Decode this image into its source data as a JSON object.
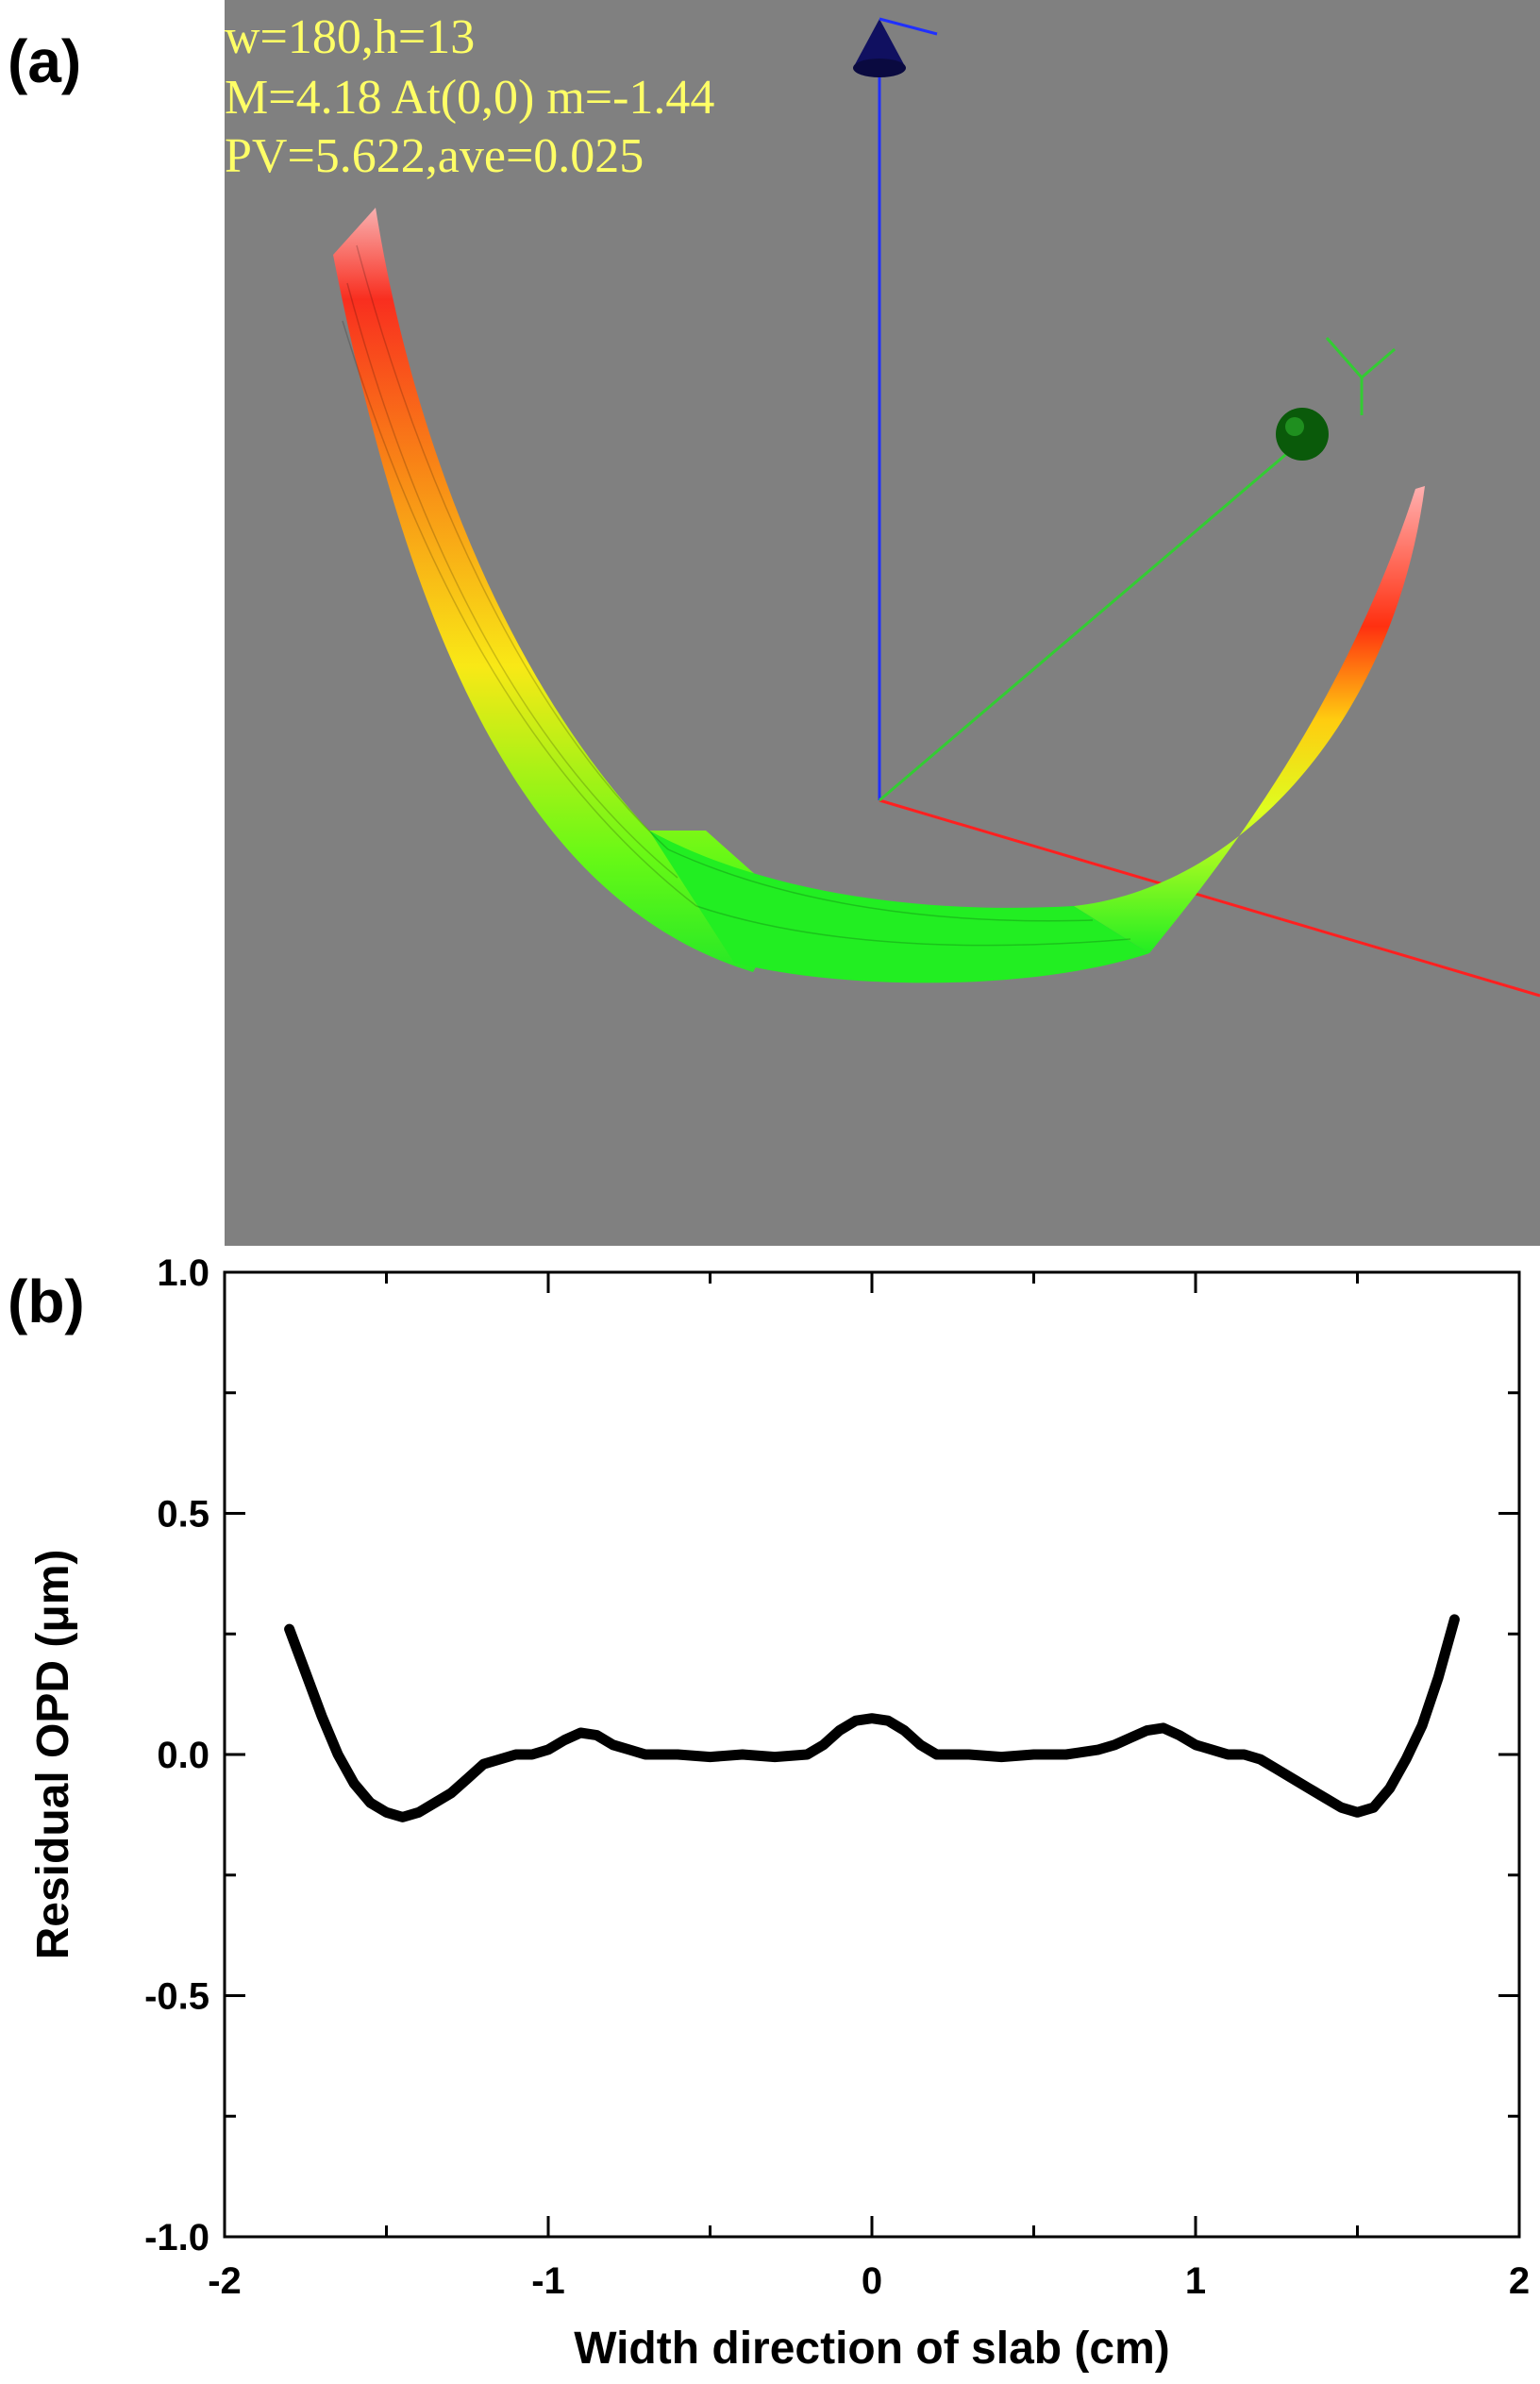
{
  "panels": {
    "a": {
      "label": "(a)"
    },
    "b": {
      "label": "(b)"
    }
  },
  "viewport": {
    "background": "#808080",
    "overlay_color": "#ffff66",
    "overlay_lines": [
      "w=180,h=13",
      "M=4.18 At(0,0) m=-1.44",
      "PV=5.622,ave=0.025"
    ],
    "axis_labels": {
      "y": "Y"
    },
    "axis_colors": {
      "x": "#ff2020",
      "y": "#33cc33",
      "z": "#2030ff"
    },
    "colormap": [
      "#00ff00",
      "#ffff00",
      "#ff8800",
      "#ff0000",
      "#ffaaaa"
    ]
  },
  "chart_data": {
    "type": "line",
    "title": "",
    "xlabel": "Width direction of slab (cm)",
    "ylabel": "Residual OPD (μm)",
    "xlim": [
      -2,
      2
    ],
    "ylim": [
      -1.0,
      1.0
    ],
    "x_ticks": [
      "-2",
      "-1",
      "0",
      "1",
      "2"
    ],
    "y_ticks": [
      "1.0",
      "0.5",
      "0.0",
      "-0.5",
      "-1.0"
    ],
    "grid": false,
    "line_color": "#000000",
    "series": [
      {
        "x": [
          -1.8,
          -1.75,
          -1.7,
          -1.65,
          -1.6,
          -1.55,
          -1.5,
          -1.45,
          -1.4,
          -1.35,
          -1.3,
          -1.25,
          -1.2,
          -1.15,
          -1.1,
          -1.05,
          -1.0,
          -0.95,
          -0.9,
          -0.85,
          -0.8,
          -0.75,
          -0.7,
          -0.6,
          -0.5,
          -0.4,
          -0.3,
          -0.2,
          -0.15,
          -0.1,
          -0.05,
          0.0,
          0.05,
          0.1,
          0.15,
          0.2,
          0.3,
          0.4,
          0.5,
          0.6,
          0.7,
          0.75,
          0.8,
          0.85,
          0.9,
          0.95,
          1.0,
          1.05,
          1.1,
          1.15,
          1.2,
          1.25,
          1.3,
          1.35,
          1.4,
          1.45,
          1.5,
          1.55,
          1.6,
          1.65,
          1.7,
          1.75,
          1.8
        ],
        "y": [
          0.26,
          0.17,
          0.08,
          0.0,
          -0.06,
          -0.1,
          -0.12,
          -0.13,
          -0.12,
          -0.1,
          -0.08,
          -0.05,
          -0.02,
          -0.01,
          0.0,
          0.0,
          0.01,
          0.03,
          0.045,
          0.04,
          0.02,
          0.01,
          0.0,
          0.0,
          -0.005,
          0.0,
          -0.005,
          0.0,
          0.02,
          0.05,
          0.07,
          0.075,
          0.07,
          0.05,
          0.02,
          0.0,
          0.0,
          -0.005,
          0.0,
          0.0,
          0.01,
          0.02,
          0.035,
          0.05,
          0.055,
          0.04,
          0.02,
          0.01,
          0.0,
          0.0,
          -0.01,
          -0.03,
          -0.05,
          -0.07,
          -0.09,
          -0.11,
          -0.12,
          -0.11,
          -0.07,
          -0.01,
          0.06,
          0.16,
          0.28
        ]
      }
    ]
  }
}
